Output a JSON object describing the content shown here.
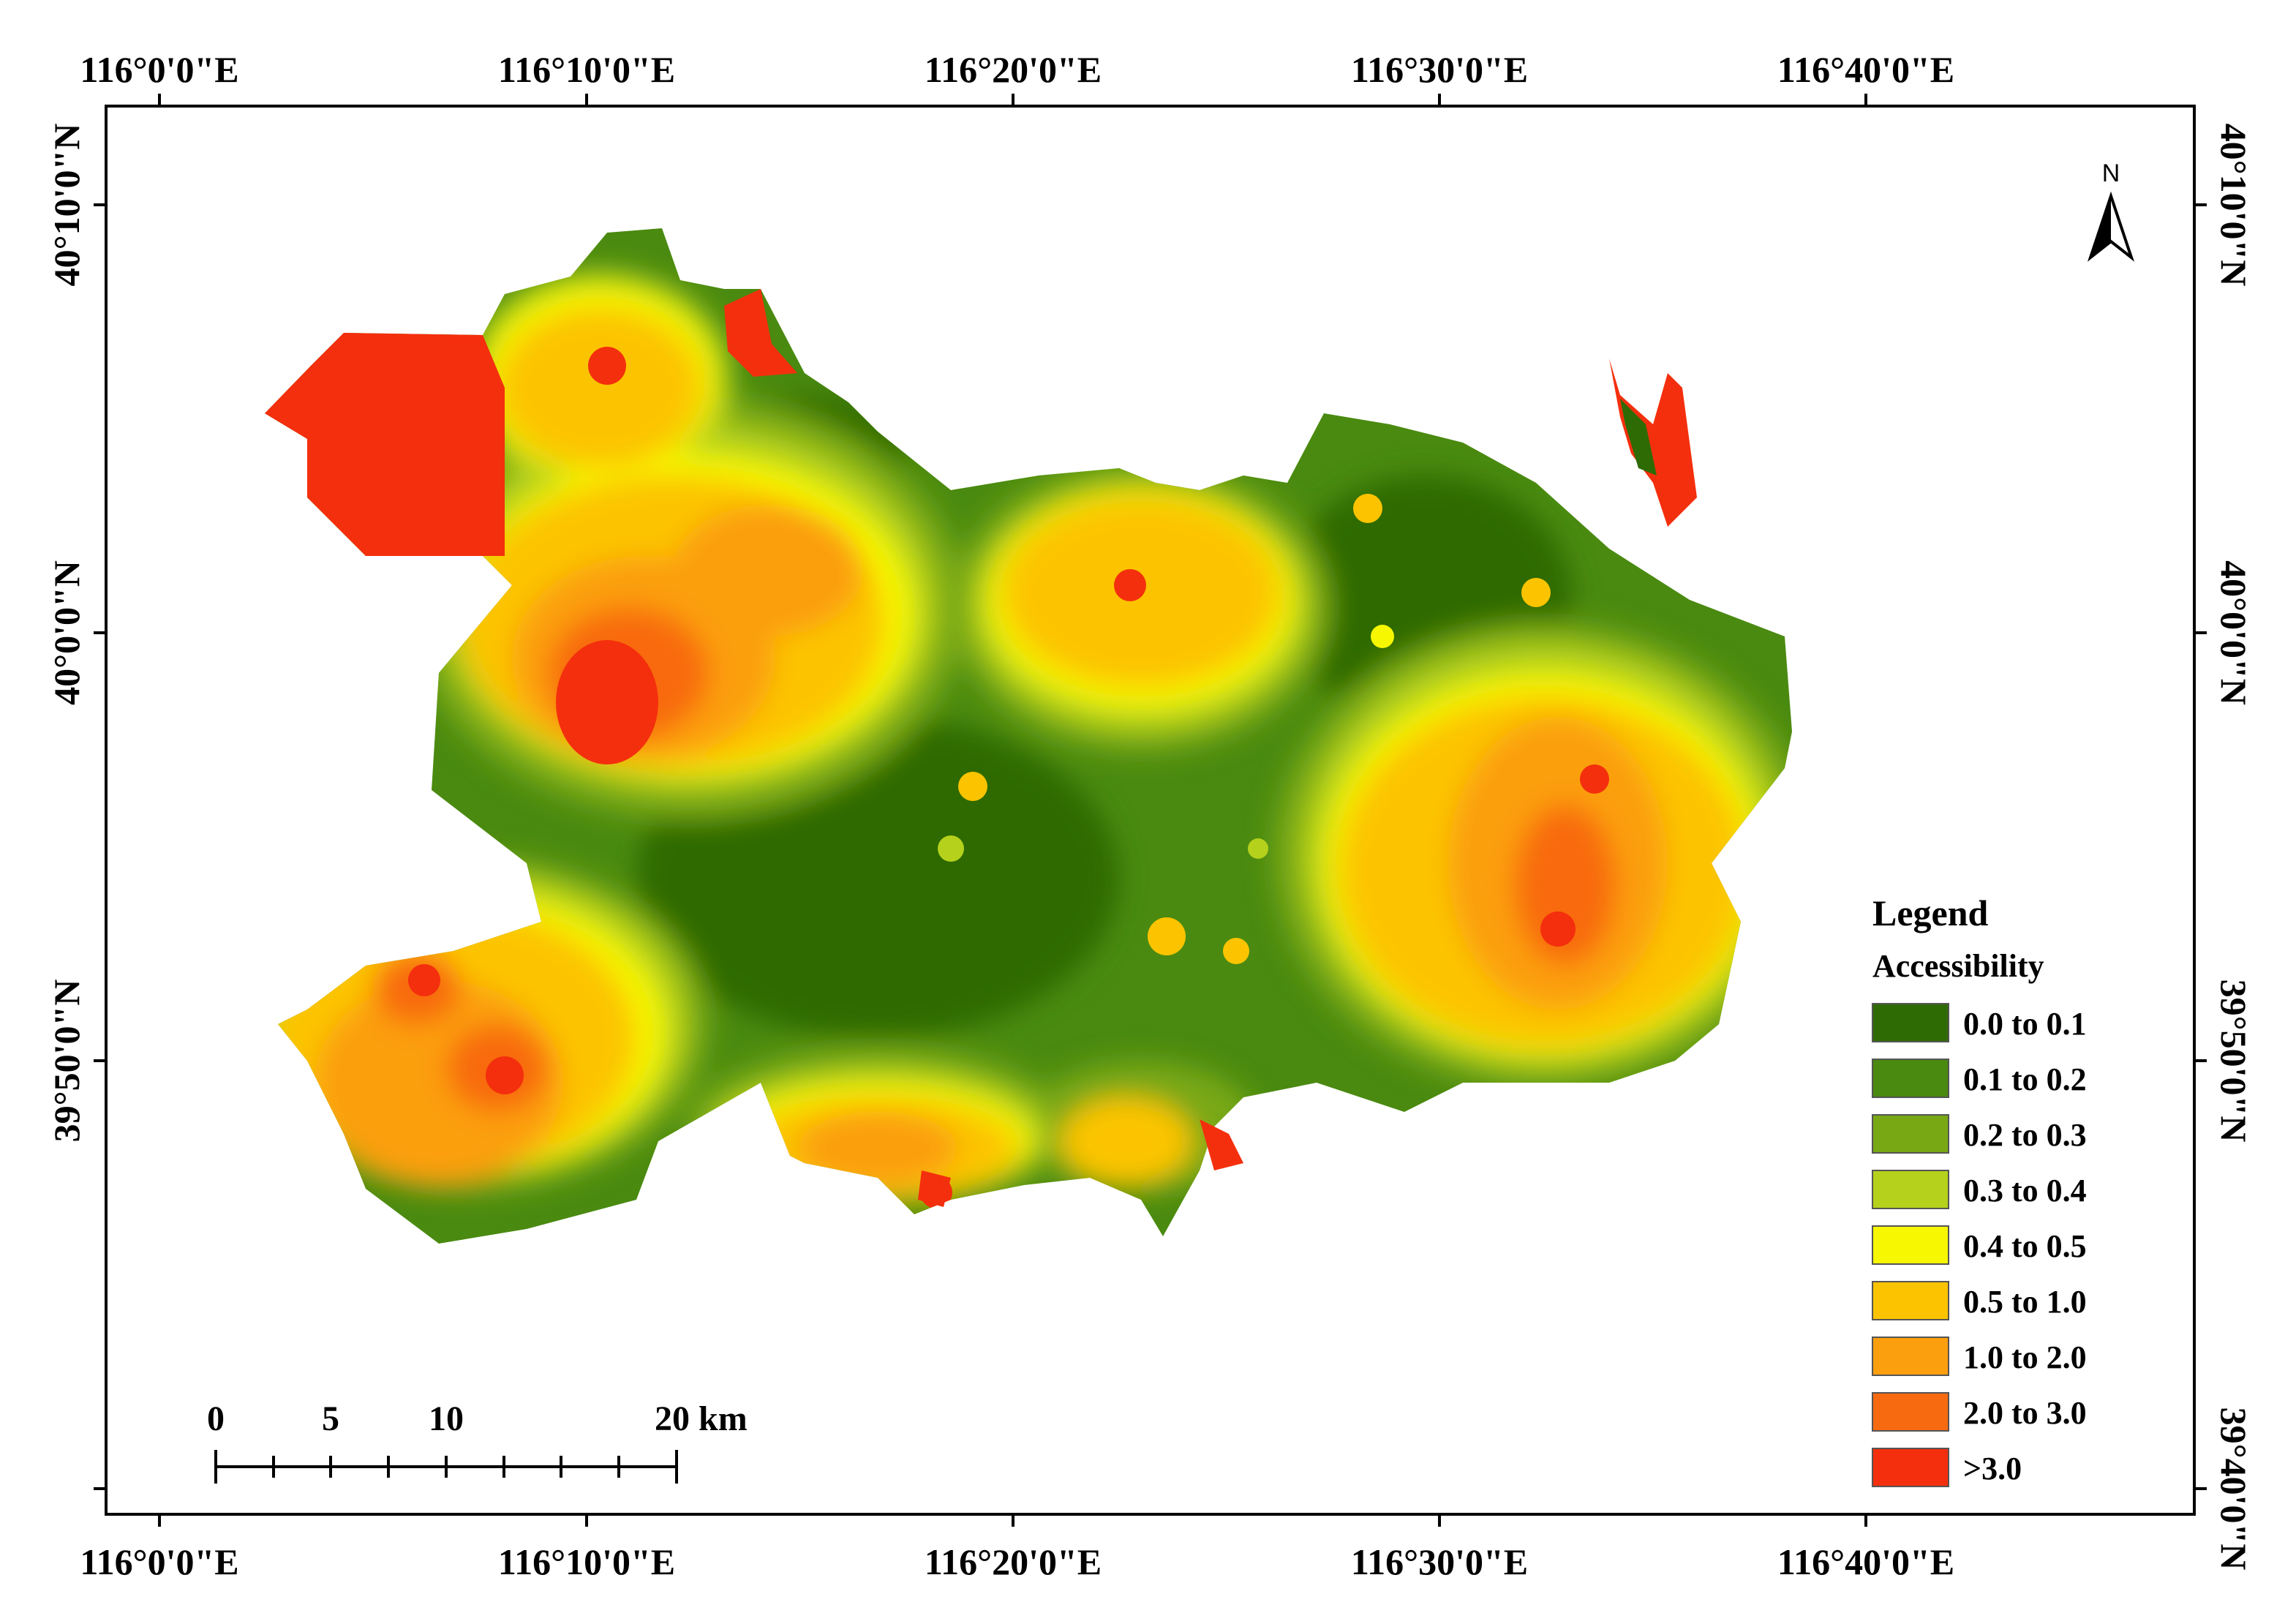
{
  "graticule": {
    "top_lon_labels": [
      "116°0'0\"E",
      "116°10'0\"E",
      "116°20'0\"E",
      "116°30'0\"E",
      "116°40'0\"E"
    ],
    "bottom_lon_labels": [
      "116°0'0\"E",
      "116°10'0\"E",
      "116°20'0\"E",
      "116°30'0\"E",
      "116°40'0\"E"
    ],
    "left_lat_labels": [
      "40°10'0\"N",
      "40°0'0\"N",
      "39°50'0\"N"
    ],
    "right_lat_labels": [
      "40°10'0\"N",
      "40°0'0\"N",
      "39°50'0\"N",
      "39°40'0\"N"
    ]
  },
  "north_arrow": {
    "letter": "N",
    "icon": "north-arrow-icon"
  },
  "legend": {
    "title": "Legend",
    "subtitle": "Accessibility",
    "classes": [
      {
        "label": "0.0 to 0.1",
        "color": "#2e6b05"
      },
      {
        "label": "0.1 to 0.2",
        "color": "#4a8a10"
      },
      {
        "label": "0.2 to 0.3",
        "color": "#78a814"
      },
      {
        "label": "0.3 to 0.4",
        "color": "#b5d11b"
      },
      {
        "label": "0.4 to 0.5",
        "color": "#f6f700"
      },
      {
        "label": "0.5 to 1.0",
        "color": "#fcc400"
      },
      {
        "label": "1.0 to 2.0",
        "color": "#fb9f0e"
      },
      {
        "label": "2.0 to 3.0",
        "color": "#f86a10"
      },
      {
        "label": ">3.0",
        "color": "#f42f0d"
      }
    ]
  },
  "scale_bar": {
    "labels": [
      "0",
      "5",
      "10",
      "20 km"
    ]
  }
}
